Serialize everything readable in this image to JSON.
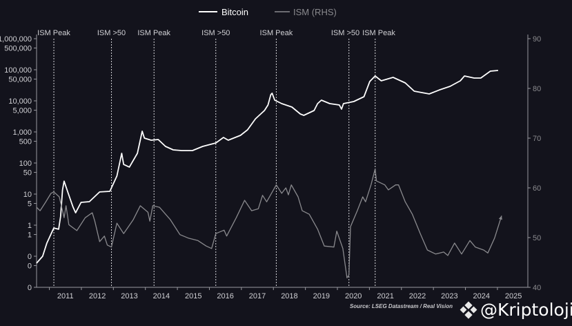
{
  "chart_data": {
    "type": "line",
    "legend": {
      "position": "top",
      "entries": [
        "Bitcoin",
        "ISM (RHS)"
      ]
    },
    "colors": {
      "background": "#13131c",
      "bitcoin": "#ffffff",
      "ism": "#8a8a8e",
      "axis": "#9a9aa0",
      "text": "#d0d0d4"
    },
    "left_axis": {
      "scale": "log",
      "range": [
        0.01,
        1000000
      ],
      "ticks": [
        {
          "value": 1000000,
          "label": "1,000,000"
        },
        {
          "value": 500000,
          "label": "500,000"
        },
        {
          "value": 100000,
          "label": "100,000"
        },
        {
          "value": 50000,
          "label": "50,000"
        },
        {
          "value": 10000,
          "label": "10,000"
        },
        {
          "value": 5000,
          "label": "5,000"
        },
        {
          "value": 1000,
          "label": "1,000"
        },
        {
          "value": 500,
          "label": "500"
        },
        {
          "value": 100,
          "label": "100"
        },
        {
          "value": 50,
          "label": "50"
        },
        {
          "value": 10,
          "label": "10"
        },
        {
          "value": 5,
          "label": "5"
        },
        {
          "value": 1,
          "label": "1"
        },
        {
          "value": 0.5,
          "label": "1"
        },
        {
          "value": 0.1,
          "label": "0"
        },
        {
          "value": 0.05,
          "label": "0"
        },
        {
          "value": 0.01,
          "label": "0"
        }
      ]
    },
    "right_axis": {
      "scale": "linear",
      "range": [
        40,
        90
      ],
      "ticks": [
        40,
        50,
        60,
        70,
        80,
        90
      ]
    },
    "x_axis": {
      "range": [
        2010.6,
        2025.95
      ],
      "labels": [
        "2011",
        "2012",
        "2013",
        "2014",
        "2015",
        "2016",
        "2017",
        "2018",
        "2019",
        "2020",
        "2021",
        "2022",
        "2023",
        "2024",
        "2025"
      ]
    },
    "grid": false,
    "annotations": [
      {
        "x": 2011.14,
        "label": "ISM Peak"
      },
      {
        "x": 2012.94,
        "label": "ISM >50"
      },
      {
        "x": 2014.27,
        "label": "ISM Peak"
      },
      {
        "x": 2016.2,
        "label": "ISM >50"
      },
      {
        "x": 2018.09,
        "label": "ISM Peak"
      },
      {
        "x": 2020.36,
        "label": "ISM >50"
      },
      {
        "x": 2021.18,
        "label": "ISM Peak"
      }
    ],
    "series": [
      {
        "name": "Bitcoin",
        "axis": "left",
        "points": [
          [
            2010.6,
            0.06
          ],
          [
            2010.79,
            0.1
          ],
          [
            2010.92,
            0.26
          ],
          [
            2011.09,
            0.63
          ],
          [
            2011.14,
            0.81
          ],
          [
            2011.29,
            0.74
          ],
          [
            2011.35,
            1.9
          ],
          [
            2011.41,
            13.6
          ],
          [
            2011.46,
            26
          ],
          [
            2011.59,
            10.5
          ],
          [
            2011.74,
            3.8
          ],
          [
            2011.82,
            2.5
          ],
          [
            2011.99,
            5.4
          ],
          [
            2012.25,
            5.7
          ],
          [
            2012.57,
            11.7
          ],
          [
            2012.89,
            12.3
          ],
          [
            2013.11,
            38
          ],
          [
            2013.26,
            205
          ],
          [
            2013.32,
            90
          ],
          [
            2013.5,
            74
          ],
          [
            2013.75,
            205
          ],
          [
            2013.9,
            1050
          ],
          [
            2013.97,
            630
          ],
          [
            2014.18,
            541
          ],
          [
            2014.4,
            570
          ],
          [
            2014.63,
            341
          ],
          [
            2014.87,
            264
          ],
          [
            2015.13,
            251
          ],
          [
            2015.47,
            251
          ],
          [
            2015.79,
            341
          ],
          [
            2016.2,
            441
          ],
          [
            2016.44,
            664
          ],
          [
            2016.59,
            541
          ],
          [
            2016.97,
            775
          ],
          [
            2017.19,
            1166
          ],
          [
            2017.44,
            2640
          ],
          [
            2017.72,
            4890
          ],
          [
            2017.83,
            7360
          ],
          [
            2017.92,
            15850
          ],
          [
            2017.96,
            17540
          ],
          [
            2018.04,
            10520
          ],
          [
            2018.26,
            8150
          ],
          [
            2018.58,
            6310
          ],
          [
            2018.84,
            3780
          ],
          [
            2018.95,
            3410
          ],
          [
            2019.27,
            4890
          ],
          [
            2019.38,
            8150
          ],
          [
            2019.5,
            10520
          ],
          [
            2019.76,
            8150
          ],
          [
            2020.06,
            7360
          ],
          [
            2020.13,
            5410
          ],
          [
            2020.19,
            8150
          ],
          [
            2020.51,
            9500
          ],
          [
            2020.83,
            13600
          ],
          [
            2021.01,
            41900
          ],
          [
            2021.18,
            63100
          ],
          [
            2021.37,
            44100
          ],
          [
            2021.74,
            57000
          ],
          [
            2022.12,
            37800
          ],
          [
            2022.4,
            20500
          ],
          [
            2022.87,
            16700
          ],
          [
            2023.2,
            22700
          ],
          [
            2023.52,
            29300
          ],
          [
            2023.84,
            44100
          ],
          [
            2023.97,
            63100
          ],
          [
            2024.27,
            54100
          ],
          [
            2024.48,
            54100
          ],
          [
            2024.78,
            90300
          ],
          [
            2025.02,
            95000
          ]
        ]
      },
      {
        "name": "ISM (RHS)",
        "axis": "right",
        "arrow_at_end": true,
        "points": [
          [
            2010.6,
            56.1
          ],
          [
            2010.71,
            55.4
          ],
          [
            2010.88,
            57.1
          ],
          [
            2011.05,
            58.9
          ],
          [
            2011.14,
            59.2
          ],
          [
            2011.31,
            58.2
          ],
          [
            2011.46,
            54.0
          ],
          [
            2011.52,
            56.4
          ],
          [
            2011.61,
            52.6
          ],
          [
            2011.86,
            51.4
          ],
          [
            2012.12,
            54.0
          ],
          [
            2012.34,
            55.0
          ],
          [
            2012.42,
            53.3
          ],
          [
            2012.57,
            49.2
          ],
          [
            2012.72,
            50.3
          ],
          [
            2012.81,
            48.5
          ],
          [
            2012.94,
            48.1
          ],
          [
            2013.11,
            52.9
          ],
          [
            2013.32,
            50.8
          ],
          [
            2013.62,
            53.6
          ],
          [
            2013.84,
            56.4
          ],
          [
            2014.08,
            55.1
          ],
          [
            2014.14,
            53.3
          ],
          [
            2014.23,
            56.4
          ],
          [
            2014.44,
            56.1
          ],
          [
            2014.78,
            53.6
          ],
          [
            2015.08,
            50.6
          ],
          [
            2015.34,
            49.9
          ],
          [
            2015.64,
            49.4
          ],
          [
            2015.9,
            48.3
          ],
          [
            2016.07,
            47.8
          ],
          [
            2016.2,
            50.8
          ],
          [
            2016.46,
            51.5
          ],
          [
            2016.54,
            50.3
          ],
          [
            2016.84,
            54.0
          ],
          [
            2017.1,
            57.5
          ],
          [
            2017.32,
            55.4
          ],
          [
            2017.53,
            55.8
          ],
          [
            2017.66,
            58.5
          ],
          [
            2017.79,
            57.2
          ],
          [
            2018.09,
            60.6
          ],
          [
            2018.26,
            58.9
          ],
          [
            2018.39,
            60.0
          ],
          [
            2018.47,
            58.6
          ],
          [
            2018.56,
            60.6
          ],
          [
            2018.77,
            58.2
          ],
          [
            2018.9,
            55.4
          ],
          [
            2019.12,
            54.7
          ],
          [
            2019.38,
            51.7
          ],
          [
            2019.59,
            48.3
          ],
          [
            2019.89,
            48.1
          ],
          [
            2019.98,
            51.3
          ],
          [
            2020.17,
            47.8
          ],
          [
            2020.3,
            41.9
          ],
          [
            2020.36,
            42.5
          ],
          [
            2020.41,
            52.2
          ],
          [
            2020.62,
            55.4
          ],
          [
            2020.79,
            58.2
          ],
          [
            2020.88,
            57.2
          ],
          [
            2021.05,
            60.6
          ],
          [
            2021.18,
            63.8
          ],
          [
            2021.22,
            61.4
          ],
          [
            2021.48,
            60.6
          ],
          [
            2021.59,
            59.6
          ],
          [
            2021.82,
            60.6
          ],
          [
            2021.91,
            60.6
          ],
          [
            2022.12,
            57.2
          ],
          [
            2022.34,
            54.7
          ],
          [
            2022.59,
            50.8
          ],
          [
            2022.81,
            47.5
          ],
          [
            2023.07,
            46.7
          ],
          [
            2023.32,
            47.1
          ],
          [
            2023.45,
            46.4
          ],
          [
            2023.66,
            48.9
          ],
          [
            2023.88,
            46.7
          ],
          [
            2024.14,
            49.4
          ],
          [
            2024.31,
            48.1
          ],
          [
            2024.57,
            47.5
          ],
          [
            2024.7,
            46.9
          ],
          [
            2024.91,
            49.9
          ],
          [
            2025.13,
            54.4
          ]
        ]
      }
    ],
    "source": "Source: LSEG Datastream / Real Vision"
  },
  "watermark": "@Kriptoloji"
}
